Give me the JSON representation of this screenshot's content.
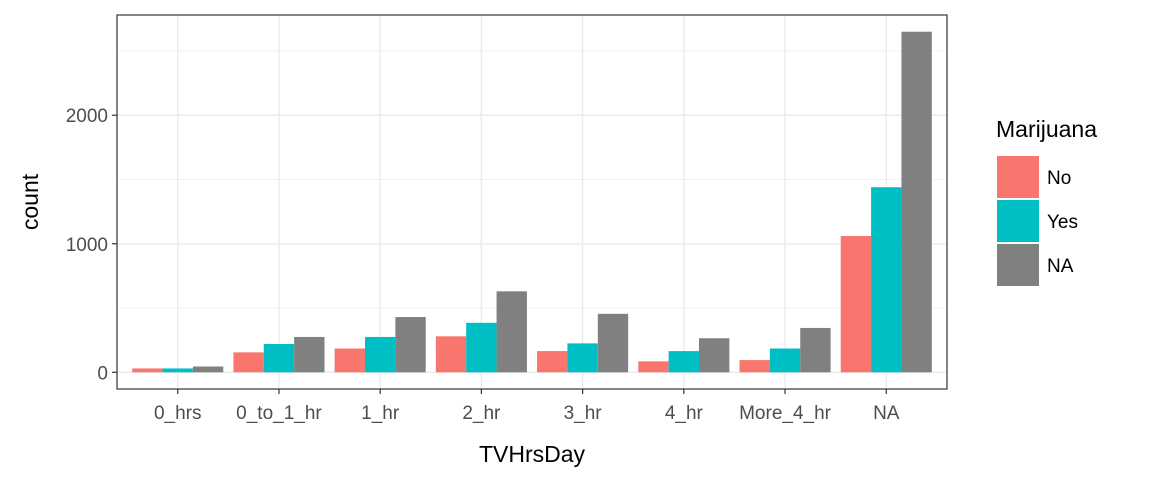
{
  "chart_data": {
    "type": "bar",
    "title": "",
    "xlabel": "TVHrsDay",
    "ylabel": "count",
    "categories": [
      "0_hrs",
      "0_to_1_hr",
      "1_hr",
      "2_hr",
      "3_hr",
      "4_hr",
      "More_4_hr",
      "NA"
    ],
    "series": [
      {
        "name": "No",
        "color": "#F8766D",
        "values": [
          30,
          155,
          185,
          280,
          165,
          85,
          95,
          1060
        ]
      },
      {
        "name": "Yes",
        "color": "#00BFC4",
        "values": [
          30,
          220,
          275,
          385,
          225,
          165,
          185,
          1440
        ]
      },
      {
        "name": "NA",
        "color": "#808080",
        "values": [
          45,
          275,
          430,
          630,
          455,
          265,
          345,
          2650
        ]
      }
    ],
    "ylim": [
      -130,
      2780
    ],
    "yticks": [
      0,
      1000,
      2000
    ],
    "grid": true,
    "legend": {
      "title": "Marijuana",
      "position": "right"
    }
  }
}
